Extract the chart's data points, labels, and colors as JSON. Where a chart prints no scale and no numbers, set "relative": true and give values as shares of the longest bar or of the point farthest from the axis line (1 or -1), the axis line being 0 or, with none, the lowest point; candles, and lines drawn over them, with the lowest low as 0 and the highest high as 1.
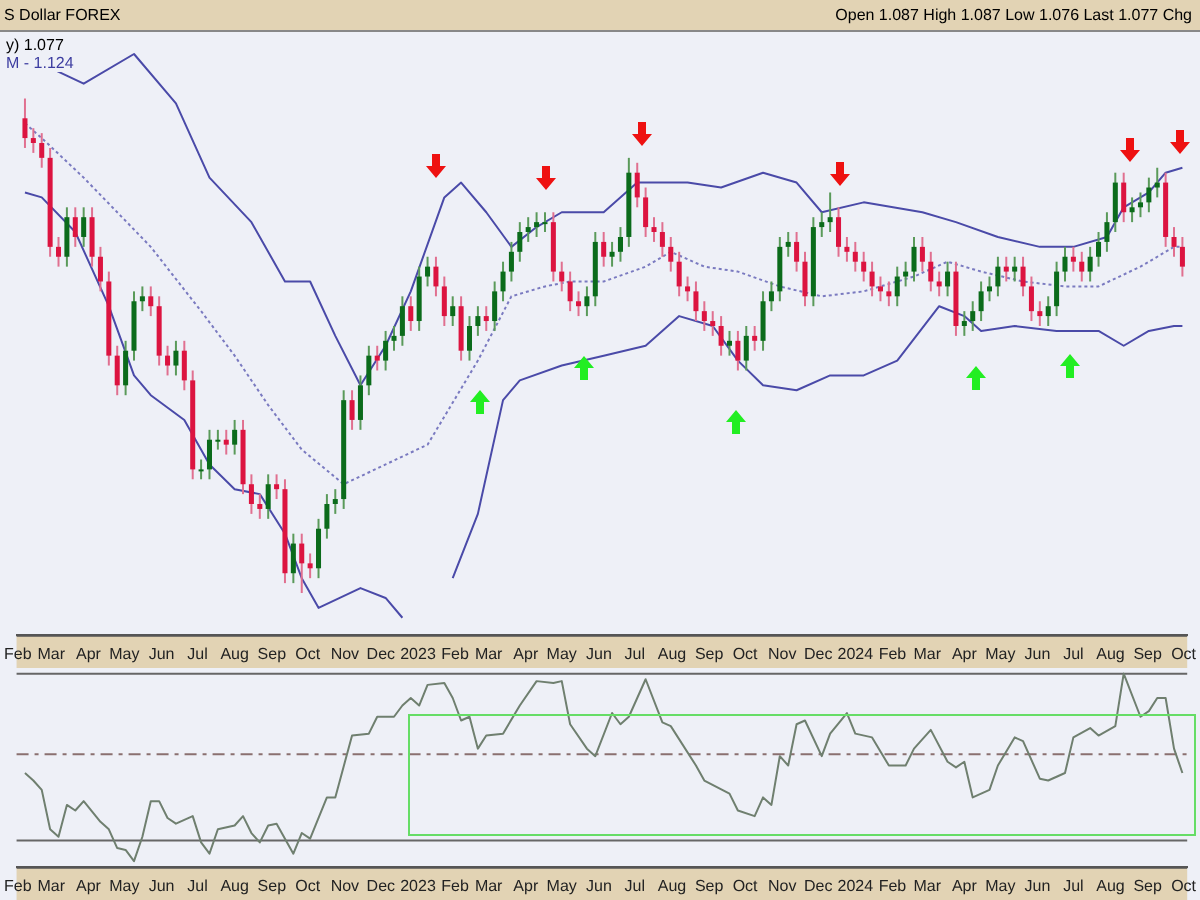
{
  "chart_data": [
    {
      "type": "candlestick",
      "relative": true,
      "title": "S Dollar FOREX",
      "annotations": [
        "Open 1.087  High 1.087  Low 1.076  Last 1.077  Chg",
        "y) 1.077",
        "M - 1.124"
      ],
      "x": [
        "2022-02-07",
        "2022-02-14",
        "2022-02-21",
        "2022-02-28",
        "2022-03-07",
        "2022-03-14",
        "2022-03-21",
        "2022-03-28",
        "2022-04-04",
        "2022-04-11",
        "2022-04-18",
        "2022-04-25",
        "2022-05-02",
        "2022-05-09",
        "2022-05-16",
        "2022-05-23",
        "2022-05-30",
        "2022-06-06",
        "2022-06-13",
        "2022-06-20",
        "2022-06-27",
        "2022-07-04",
        "2022-07-11",
        "2022-07-18",
        "2022-07-25",
        "2022-08-01",
        "2022-08-08",
        "2022-08-15",
        "2022-08-22",
        "2022-08-29",
        "2022-09-05",
        "2022-09-12",
        "2022-09-19",
        "2022-09-26",
        "2022-10-03",
        "2022-10-10",
        "2022-10-17",
        "2022-10-24",
        "2022-10-31",
        "2022-11-07",
        "2022-11-14",
        "2022-11-21",
        "2022-11-28",
        "2022-12-05",
        "2022-12-12",
        "2022-12-19",
        "2022-12-26",
        "2023-01-02",
        "2023-01-09",
        "2023-01-16",
        "2023-01-23",
        "2023-01-30",
        "2023-02-06",
        "2023-02-13",
        "2023-02-20",
        "2023-02-27",
        "2023-03-06",
        "2023-03-13",
        "2023-03-20",
        "2023-03-27",
        "2023-04-03",
        "2023-04-10",
        "2023-04-17",
        "2023-04-24",
        "2023-05-01",
        "2023-05-08",
        "2023-05-15",
        "2023-05-22",
        "2023-05-29",
        "2023-06-05",
        "2023-06-12",
        "2023-06-19",
        "2023-06-26",
        "2023-07-03",
        "2023-07-10",
        "2023-07-17",
        "2023-07-24",
        "2023-07-31",
        "2023-08-07",
        "2023-08-14",
        "2023-08-21",
        "2023-08-28",
        "2023-09-04",
        "2023-09-11",
        "2023-09-18",
        "2023-09-25",
        "2023-10-02",
        "2023-10-09",
        "2023-10-16",
        "2023-10-23",
        "2023-10-30",
        "2023-11-06",
        "2023-11-13",
        "2023-11-20",
        "2023-11-27",
        "2023-12-04",
        "2023-12-11",
        "2023-12-18",
        "2023-12-25",
        "2024-01-01",
        "2024-01-08",
        "2024-01-15",
        "2024-01-22",
        "2024-01-29",
        "2024-02-05",
        "2024-02-12",
        "2024-02-19",
        "2024-02-26",
        "2024-03-04",
        "2024-03-11",
        "2024-03-18",
        "2024-03-25",
        "2024-04-01",
        "2024-04-08",
        "2024-04-15",
        "2024-04-22",
        "2024-04-29",
        "2024-05-06",
        "2024-05-13",
        "2024-05-20",
        "2024-05-27",
        "2024-06-03",
        "2024-06-10",
        "2024-06-17",
        "2024-06-24",
        "2024-07-01",
        "2024-07-08",
        "2024-07-15",
        "2024-07-22",
        "2024-07-29",
        "2024-08-05",
        "2024-08-12",
        "2024-08-19",
        "2024-08-26",
        "2024-09-02",
        "2024-09-09",
        "2024-09-16",
        "2024-09-23",
        "2024-09-30"
      ],
      "ohlc": [
        [
          0.96,
          1.0,
          0.9,
          0.92
        ],
        [
          0.92,
          0.94,
          0.89,
          0.91
        ],
        [
          0.91,
          0.93,
          0.86,
          0.88
        ],
        [
          0.88,
          0.9,
          0.68,
          0.7
        ],
        [
          0.7,
          0.72,
          0.66,
          0.68
        ],
        [
          0.68,
          0.78,
          0.66,
          0.76
        ],
        [
          0.76,
          0.78,
          0.7,
          0.72
        ],
        [
          0.72,
          0.78,
          0.7,
          0.76
        ],
        [
          0.76,
          0.78,
          0.66,
          0.68
        ],
        [
          0.68,
          0.7,
          0.61,
          0.63
        ],
        [
          0.63,
          0.65,
          0.46,
          0.48
        ],
        [
          0.48,
          0.5,
          0.4,
          0.42
        ],
        [
          0.42,
          0.51,
          0.4,
          0.49
        ],
        [
          0.49,
          0.61,
          0.47,
          0.59
        ],
        [
          0.59,
          0.62,
          0.57,
          0.6
        ],
        [
          0.6,
          0.62,
          0.56,
          0.58
        ],
        [
          0.58,
          0.6,
          0.46,
          0.48
        ],
        [
          0.48,
          0.5,
          0.44,
          0.46
        ],
        [
          0.46,
          0.51,
          0.44,
          0.49
        ],
        [
          0.49,
          0.51,
          0.41,
          0.43
        ],
        [
          0.43,
          0.45,
          0.23,
          0.25
        ],
        [
          0.25,
          0.27,
          0.23,
          0.25
        ],
        [
          0.25,
          0.33,
          0.23,
          0.31
        ],
        [
          0.31,
          0.33,
          0.29,
          0.31
        ],
        [
          0.31,
          0.33,
          0.28,
          0.3
        ],
        [
          0.3,
          0.35,
          0.28,
          0.33
        ],
        [
          0.33,
          0.35,
          0.2,
          0.22
        ],
        [
          0.22,
          0.24,
          0.16,
          0.18
        ],
        [
          0.18,
          0.2,
          0.15,
          0.17
        ],
        [
          0.17,
          0.24,
          0.15,
          0.22
        ],
        [
          0.22,
          0.24,
          0.19,
          0.21
        ],
        [
          0.21,
          0.23,
          0.02,
          0.04
        ],
        [
          0.04,
          0.12,
          0.02,
          0.1
        ],
        [
          0.1,
          0.12,
          0.0,
          0.06
        ],
        [
          0.06,
          0.08,
          0.03,
          0.05
        ],
        [
          0.05,
          0.15,
          0.03,
          0.13
        ],
        [
          0.13,
          0.2,
          0.11,
          0.18
        ],
        [
          0.18,
          0.21,
          0.16,
          0.19
        ],
        [
          0.19,
          0.41,
          0.17,
          0.39
        ],
        [
          0.39,
          0.41,
          0.33,
          0.35
        ],
        [
          0.35,
          0.44,
          0.33,
          0.42
        ],
        [
          0.42,
          0.5,
          0.4,
          0.48
        ],
        [
          0.48,
          0.5,
          0.45,
          0.47
        ],
        [
          0.47,
          0.53,
          0.45,
          0.51
        ],
        [
          0.51,
          0.54,
          0.49,
          0.52
        ],
        [
          0.52,
          0.6,
          0.5,
          0.58
        ],
        [
          0.58,
          0.6,
          0.53,
          0.55
        ],
        [
          0.55,
          0.66,
          0.53,
          0.64
        ],
        [
          0.64,
          0.68,
          0.62,
          0.66
        ],
        [
          0.66,
          0.68,
          0.6,
          0.62
        ],
        [
          0.62,
          0.64,
          0.54,
          0.56
        ],
        [
          0.56,
          0.6,
          0.54,
          0.58
        ],
        [
          0.58,
          0.6,
          0.47,
          0.49
        ],
        [
          0.49,
          0.56,
          0.47,
          0.54
        ],
        [
          0.54,
          0.58,
          0.52,
          0.56
        ],
        [
          0.56,
          0.58,
          0.53,
          0.55
        ],
        [
          0.55,
          0.63,
          0.53,
          0.61
        ],
        [
          0.61,
          0.67,
          0.59,
          0.65
        ],
        [
          0.65,
          0.71,
          0.63,
          0.69
        ],
        [
          0.69,
          0.75,
          0.67,
          0.73
        ],
        [
          0.73,
          0.76,
          0.71,
          0.74
        ],
        [
          0.74,
          0.77,
          0.72,
          0.75
        ],
        [
          0.75,
          0.77,
          0.73,
          0.75
        ],
        [
          0.75,
          0.77,
          0.63,
          0.65
        ],
        [
          0.65,
          0.67,
          0.61,
          0.63
        ],
        [
          0.63,
          0.65,
          0.57,
          0.59
        ],
        [
          0.59,
          0.61,
          0.56,
          0.58
        ],
        [
          0.58,
          0.62,
          0.56,
          0.6
        ],
        [
          0.6,
          0.73,
          0.58,
          0.71
        ],
        [
          0.71,
          0.73,
          0.66,
          0.68
        ],
        [
          0.68,
          0.71,
          0.66,
          0.69
        ],
        [
          0.69,
          0.74,
          0.67,
          0.72
        ],
        [
          0.72,
          0.88,
          0.7,
          0.85
        ],
        [
          0.85,
          0.87,
          0.78,
          0.8
        ],
        [
          0.8,
          0.82,
          0.72,
          0.74
        ],
        [
          0.74,
          0.76,
          0.71,
          0.73
        ],
        [
          0.73,
          0.75,
          0.68,
          0.7
        ],
        [
          0.7,
          0.72,
          0.65,
          0.67
        ],
        [
          0.67,
          0.69,
          0.6,
          0.62
        ],
        [
          0.62,
          0.64,
          0.59,
          0.61
        ],
        [
          0.61,
          0.63,
          0.55,
          0.57
        ],
        [
          0.57,
          0.59,
          0.53,
          0.55
        ],
        [
          0.55,
          0.57,
          0.52,
          0.54
        ],
        [
          0.54,
          0.56,
          0.48,
          0.5
        ],
        [
          0.5,
          0.53,
          0.48,
          0.51
        ],
        [
          0.51,
          0.53,
          0.45,
          0.47
        ],
        [
          0.47,
          0.54,
          0.45,
          0.52
        ],
        [
          0.52,
          0.54,
          0.49,
          0.51
        ],
        [
          0.51,
          0.61,
          0.49,
          0.59
        ],
        [
          0.59,
          0.63,
          0.57,
          0.61
        ],
        [
          0.61,
          0.72,
          0.59,
          0.7
        ],
        [
          0.7,
          0.73,
          0.68,
          0.71
        ],
        [
          0.71,
          0.73,
          0.65,
          0.67
        ],
        [
          0.67,
          0.69,
          0.58,
          0.6
        ],
        [
          0.6,
          0.76,
          0.58,
          0.74
        ],
        [
          0.74,
          0.77,
          0.72,
          0.75
        ],
        [
          0.75,
          0.81,
          0.73,
          0.76
        ],
        [
          0.76,
          0.78,
          0.68,
          0.7
        ],
        [
          0.7,
          0.72,
          0.67,
          0.69
        ],
        [
          0.69,
          0.71,
          0.65,
          0.67
        ],
        [
          0.67,
          0.69,
          0.63,
          0.65
        ],
        [
          0.65,
          0.67,
          0.6,
          0.62
        ],
        [
          0.62,
          0.64,
          0.59,
          0.61
        ],
        [
          0.61,
          0.63,
          0.58,
          0.6
        ],
        [
          0.6,
          0.66,
          0.58,
          0.64
        ],
        [
          0.64,
          0.67,
          0.62,
          0.65
        ],
        [
          0.65,
          0.72,
          0.63,
          0.7
        ],
        [
          0.7,
          0.72,
          0.65,
          0.67
        ],
        [
          0.67,
          0.69,
          0.61,
          0.63
        ],
        [
          0.63,
          0.65,
          0.6,
          0.62
        ],
        [
          0.62,
          0.67,
          0.6,
          0.65
        ],
        [
          0.65,
          0.67,
          0.52,
          0.54
        ],
        [
          0.54,
          0.57,
          0.52,
          0.55
        ],
        [
          0.55,
          0.59,
          0.53,
          0.57
        ],
        [
          0.57,
          0.63,
          0.55,
          0.61
        ],
        [
          0.61,
          0.64,
          0.59,
          0.62
        ],
        [
          0.62,
          0.68,
          0.6,
          0.66
        ],
        [
          0.66,
          0.68,
          0.63,
          0.65
        ],
        [
          0.65,
          0.68,
          0.63,
          0.66
        ],
        [
          0.66,
          0.68,
          0.6,
          0.62
        ],
        [
          0.62,
          0.64,
          0.55,
          0.57
        ],
        [
          0.57,
          0.59,
          0.54,
          0.56
        ],
        [
          0.56,
          0.6,
          0.54,
          0.58
        ],
        [
          0.58,
          0.67,
          0.56,
          0.65
        ],
        [
          0.65,
          0.7,
          0.63,
          0.68
        ],
        [
          0.68,
          0.7,
          0.65,
          0.67
        ],
        [
          0.67,
          0.69,
          0.63,
          0.65
        ],
        [
          0.65,
          0.7,
          0.63,
          0.68
        ],
        [
          0.68,
          0.73,
          0.66,
          0.71
        ],
        [
          0.71,
          0.77,
          0.69,
          0.75
        ],
        [
          0.75,
          0.85,
          0.73,
          0.83
        ],
        [
          0.83,
          0.85,
          0.75,
          0.77
        ],
        [
          0.77,
          0.8,
          0.75,
          0.78
        ],
        [
          0.78,
          0.81,
          0.76,
          0.79
        ],
        [
          0.79,
          0.84,
          0.77,
          0.82
        ],
        [
          0.82,
          0.86,
          0.8,
          0.83
        ],
        [
          0.83,
          0.85,
          0.7,
          0.72
        ],
        [
          0.72,
          0.74,
          0.68,
          0.7
        ],
        [
          0.7,
          0.72,
          0.64,
          0.66
        ]
      ],
      "series": [
        {
          "type": "line",
          "color": "#4a4aa8",
          "line_style": "solid",
          "x": [
            "2022-02-07",
            "2022-02-21",
            "2022-03-28",
            "2022-05-09",
            "2022-06-13",
            "2022-07-11",
            "2022-08-15",
            "2022-09-12",
            "2022-10-03",
            "2022-10-24",
            "2022-11-14",
            "2022-12-05",
            "2022-12-26",
            "2023-01-23",
            "2023-02-06",
            "2023-02-27",
            "2023-03-20",
            "2023-04-10",
            "2023-05-01",
            "2023-06-05",
            "2023-07-03",
            "2023-08-14",
            "2023-09-11",
            "2023-10-16",
            "2023-11-13",
            "2023-12-04",
            "2024-01-08",
            "2024-02-26",
            "2024-03-25",
            "2024-04-29",
            "2024-06-03",
            "2024-07-01",
            "2024-07-29",
            "2024-08-12",
            "2024-09-02",
            "2024-09-16",
            "2024-09-30"
          ],
          "values": [
            1.1,
            1.07,
            1.03,
            1.09,
            0.99,
            0.84,
            0.75,
            0.63,
            0.63,
            0.52,
            0.42,
            0.5,
            0.61,
            0.8,
            0.83,
            0.77,
            0.7,
            0.74,
            0.77,
            0.77,
            0.83,
            0.83,
            0.82,
            0.85,
            0.83,
            0.77,
            0.79,
            0.77,
            0.75,
            0.72,
            0.7,
            0.7,
            0.72,
            0.78,
            0.81,
            0.85,
            0.86
          ]
        },
        {
          "type": "line",
          "color": "#7a7ac0",
          "line_style": "dotted",
          "x": [
            "2022-02-07",
            "2022-02-21",
            "2022-03-28",
            "2022-04-25",
            "2022-05-23",
            "2022-07-04",
            "2022-08-01",
            "2022-08-29",
            "2022-09-26",
            "2022-10-31",
            "2022-12-05",
            "2023-01-09",
            "2023-02-20",
            "2023-03-20",
            "2023-04-17",
            "2023-05-08",
            "2023-06-05",
            "2023-07-10",
            "2023-07-31",
            "2023-08-28",
            "2023-09-25",
            "2023-10-30",
            "2023-12-04",
            "2024-01-08",
            "2024-02-19",
            "2024-03-18",
            "2024-04-15",
            "2024-05-20",
            "2024-06-24",
            "2024-07-22",
            "2024-08-26",
            "2024-09-23",
            "2024-09-30"
          ],
          "values": [
            0.95,
            0.92,
            0.84,
            0.77,
            0.7,
            0.57,
            0.48,
            0.38,
            0.29,
            0.22,
            0.26,
            0.3,
            0.47,
            0.6,
            0.62,
            0.63,
            0.63,
            0.66,
            0.69,
            0.66,
            0.65,
            0.62,
            0.6,
            0.61,
            0.64,
            0.67,
            0.65,
            0.63,
            0.62,
            0.62,
            0.66,
            0.7,
            0.7
          ]
        },
        {
          "type": "line",
          "color": "#4a4aa8",
          "line_style": "solid",
          "x": [
            "2022-02-07",
            "2022-02-21",
            "2022-03-21",
            "2022-04-18",
            "2022-05-09",
            "2022-05-23",
            "2022-06-20",
            "2022-07-11",
            "2022-08-01",
            "2022-08-22",
            "2022-09-12",
            "2022-09-26",
            "2022-10-10",
            "2022-11-14",
            "2022-12-05",
            "2022-12-19",
            "2023-01-02",
            "2023-01-30",
            "2023-02-20",
            "2023-03-13",
            "2023-03-27",
            "2023-05-01",
            "2023-06-05",
            "2023-07-10",
            "2023-08-07",
            "2023-09-04",
            "2023-09-25",
            "2023-10-16",
            "2023-11-13",
            "2023-12-11",
            "2024-01-08",
            "2024-02-05",
            "2024-03-11",
            "2024-04-01",
            "2024-04-15",
            "2024-05-13",
            "2024-06-17",
            "2024-07-22",
            "2024-08-12",
            "2024-09-02",
            "2024-09-23",
            "2024-09-30"
          ],
          "values": [
            0.81,
            0.8,
            0.73,
            0.58,
            0.44,
            0.4,
            0.35,
            0.26,
            0.21,
            0.2,
            0.12,
            0.03,
            -0.03,
            0.01,
            -0.01,
            -0.05,
            null,
            0.03,
            0.16,
            0.39,
            0.43,
            0.46,
            0.48,
            0.5,
            0.56,
            0.54,
            0.47,
            0.42,
            0.41,
            0.44,
            0.44,
            0.47,
            0.58,
            0.56,
            0.53,
            0.54,
            0.53,
            0.53,
            0.5,
            0.53,
            0.54,
            0.54
          ]
        }
      ],
      "xlim": [
        "2022-01-31",
        "2024-10-04"
      ],
      "xticks": [
        {
          "value": "2022-02-01",
          "label": "Feb"
        },
        {
          "value": "2022-03-01",
          "label": "Mar"
        },
        {
          "value": "2022-04-01",
          "label": "Apr"
        },
        {
          "value": "2022-05-01",
          "label": "May"
        },
        {
          "value": "2022-06-01",
          "label": "Jun"
        },
        {
          "value": "2022-07-01",
          "label": "Jul"
        },
        {
          "value": "2022-08-01",
          "label": "Aug"
        },
        {
          "value": "2022-09-01",
          "label": "Sep"
        },
        {
          "value": "2022-10-01",
          "label": "Oct"
        },
        {
          "value": "2022-11-01",
          "label": "Nov"
        },
        {
          "value": "2022-12-01",
          "label": "Dec"
        },
        {
          "value": "2023-01-01",
          "label": "2023"
        },
        {
          "value": "2023-02-01",
          "label": "Feb"
        },
        {
          "value": "2023-03-01",
          "label": "Mar"
        },
        {
          "value": "2023-04-01",
          "label": "Apr"
        },
        {
          "value": "2023-05-01",
          "label": "May"
        },
        {
          "value": "2023-06-01",
          "label": "Jun"
        },
        {
          "value": "2023-07-01",
          "label": "Jul"
        },
        {
          "value": "2023-08-01",
          "label": "Aug"
        },
        {
          "value": "2023-09-01",
          "label": "Sep"
        },
        {
          "value": "2023-10-01",
          "label": "Oct"
        },
        {
          "value": "2023-11-01",
          "label": "Nov"
        },
        {
          "value": "2023-12-01",
          "label": "Dec"
        },
        {
          "value": "2024-01-01",
          "label": "2024"
        },
        {
          "value": "2024-02-01",
          "label": "Feb"
        },
        {
          "value": "2024-03-01",
          "label": "Mar"
        },
        {
          "value": "2024-04-01",
          "label": "Apr"
        },
        {
          "value": "2024-05-01",
          "label": "May"
        },
        {
          "value": "2024-06-01",
          "label": "Jun"
        },
        {
          "value": "2024-07-01",
          "label": "Jul"
        },
        {
          "value": "2024-08-01",
          "label": "Aug"
        },
        {
          "value": "2024-09-01",
          "label": "Sep"
        },
        {
          "value": "2024-10-01",
          "label": "Oct"
        }
      ],
      "legend": false,
      "grid": false
    },
    {
      "type": "line",
      "relative": true,
      "color": "#6f7f6f",
      "marker": "none",
      "x": [
        "2022-02-07",
        "2022-02-14",
        "2022-02-21",
        "2022-02-28",
        "2022-03-07",
        "2022-03-14",
        "2022-03-21",
        "2022-03-28",
        "2022-04-11",
        "2022-04-18",
        "2022-04-25",
        "2022-05-02",
        "2022-05-09",
        "2022-05-16",
        "2022-05-23",
        "2022-05-30",
        "2022-06-06",
        "2022-06-13",
        "2022-06-27",
        "2022-07-04",
        "2022-07-11",
        "2022-07-18",
        "2022-08-01",
        "2022-08-08",
        "2022-08-15",
        "2022-08-22",
        "2022-08-29",
        "2022-09-05",
        "2022-09-19",
        "2022-09-26",
        "2022-10-03",
        "2022-10-17",
        "2022-10-24",
        "2022-11-07",
        "2022-11-21",
        "2022-11-28",
        "2022-12-12",
        "2022-12-19",
        "2022-12-26",
        "2023-01-02",
        "2023-01-09",
        "2023-01-23",
        "2023-01-30",
        "2023-02-06",
        "2023-02-13",
        "2023-02-20",
        "2023-02-27",
        "2023-03-13",
        "2023-03-27",
        "2023-04-10",
        "2023-04-24",
        "2023-05-01",
        "2023-05-08",
        "2023-05-22",
        "2023-05-29",
        "2023-06-12",
        "2023-06-19",
        "2023-06-26",
        "2023-07-10",
        "2023-07-24",
        "2023-07-31",
        "2023-08-21",
        "2023-08-28",
        "2023-09-18",
        "2023-09-25",
        "2023-10-09",
        "2023-10-16",
        "2023-10-23",
        "2023-10-30",
        "2023-11-06",
        "2023-11-13",
        "2023-11-20",
        "2023-12-04",
        "2023-12-11",
        "2023-12-25",
        "2024-01-01",
        "2024-01-15",
        "2024-01-29",
        "2024-02-12",
        "2024-02-19",
        "2024-03-04",
        "2024-03-18",
        "2024-03-25",
        "2024-04-01",
        "2024-04-08",
        "2024-04-22",
        "2024-04-29",
        "2024-05-13",
        "2024-05-20",
        "2024-06-03",
        "2024-06-10",
        "2024-06-24",
        "2024-07-01",
        "2024-07-15",
        "2024-07-22",
        "2024-08-05",
        "2024-08-12",
        "2024-08-26",
        "2024-09-02",
        "2024-09-09",
        "2024-09-16",
        "2024-09-23",
        "2024-09-30"
      ],
      "values": [
        0.47,
        0.43,
        0.38,
        0.17,
        0.13,
        0.3,
        0.27,
        0.32,
        0.21,
        0.17,
        0.07,
        0.06,
        0.0,
        0.13,
        0.32,
        0.32,
        0.23,
        0.2,
        0.24,
        0.1,
        0.04,
        0.17,
        0.19,
        0.24,
        0.15,
        0.1,
        0.19,
        0.2,
        0.04,
        0.15,
        0.12,
        0.34,
        0.34,
        0.67,
        0.68,
        0.77,
        0.77,
        0.83,
        0.87,
        0.83,
        0.94,
        0.95,
        0.87,
        0.75,
        0.77,
        0.6,
        0.67,
        0.68,
        0.83,
        0.96,
        0.95,
        0.96,
        0.73,
        0.6,
        0.56,
        0.79,
        0.73,
        0.77,
        0.97,
        0.74,
        0.72,
        0.51,
        0.43,
        0.36,
        0.27,
        0.24,
        0.34,
        0.3,
        0.56,
        0.51,
        0.73,
        0.75,
        0.56,
        0.68,
        0.79,
        0.68,
        0.66,
        0.51,
        0.51,
        0.6,
        0.7,
        0.53,
        0.5,
        0.53,
        0.34,
        0.38,
        0.51,
        0.66,
        0.64,
        0.44,
        0.43,
        0.47,
        0.66,
        0.71,
        0.67,
        0.72,
        1.0,
        0.77,
        0.8,
        0.87,
        0.87,
        0.6,
        0.47
      ],
      "ref_lines": [
        {
          "axis": "y",
          "value": 1.0,
          "color": "#666666",
          "line_style": "solid"
        },
        {
          "axis": "y",
          "value": 0.57,
          "color": "#8a7070",
          "line_style": "dashed"
        },
        {
          "axis": "y",
          "value": 0.11,
          "color": "#666666",
          "line_style": "solid"
        }
      ],
      "xlim": [
        "2022-01-31",
        "2024-10-04"
      ],
      "xticks": [
        {
          "value": "2022-02-01",
          "label": "Feb"
        },
        {
          "value": "2022-03-01",
          "label": "Mar"
        },
        {
          "value": "2022-04-01",
          "label": "Apr"
        },
        {
          "value": "2022-05-01",
          "label": "May"
        },
        {
          "value": "2022-06-01",
          "label": "Jun"
        },
        {
          "value": "2022-07-01",
          "label": "Jul"
        },
        {
          "value": "2022-08-01",
          "label": "Aug"
        },
        {
          "value": "2022-09-01",
          "label": "Sep"
        },
        {
          "value": "2022-10-01",
          "label": "Oct"
        },
        {
          "value": "2022-11-01",
          "label": "Nov"
        },
        {
          "value": "2022-12-01",
          "label": "Dec"
        },
        {
          "value": "2023-01-01",
          "label": "2023"
        },
        {
          "value": "2023-02-01",
          "label": "Feb"
        },
        {
          "value": "2023-03-01",
          "label": "Mar"
        },
        {
          "value": "2023-04-01",
          "label": "Apr"
        },
        {
          "value": "2023-05-01",
          "label": "May"
        },
        {
          "value": "2023-06-01",
          "label": "Jun"
        },
        {
          "value": "2023-07-01",
          "label": "Jul"
        },
        {
          "value": "2023-08-01",
          "label": "Aug"
        },
        {
          "value": "2023-09-01",
          "label": "Sep"
        },
        {
          "value": "2023-10-01",
          "label": "Oct"
        },
        {
          "value": "2023-11-01",
          "label": "Nov"
        },
        {
          "value": "2023-12-01",
          "label": "Dec"
        },
        {
          "value": "2024-01-01",
          "label": "2024"
        },
        {
          "value": "2024-02-01",
          "label": "Feb"
        },
        {
          "value": "2024-03-01",
          "label": "Mar"
        },
        {
          "value": "2024-04-01",
          "label": "Apr"
        },
        {
          "value": "2024-05-01",
          "label": "May"
        },
        {
          "value": "2024-06-01",
          "label": "Jun"
        },
        {
          "value": "2024-07-01",
          "label": "Jul"
        },
        {
          "value": "2024-08-01",
          "label": "Aug"
        },
        {
          "value": "2024-09-01",
          "label": "Sep"
        },
        {
          "value": "2024-10-01",
          "label": "Oct"
        }
      ],
      "legend": false,
      "grid": false
    }
  ]
}
